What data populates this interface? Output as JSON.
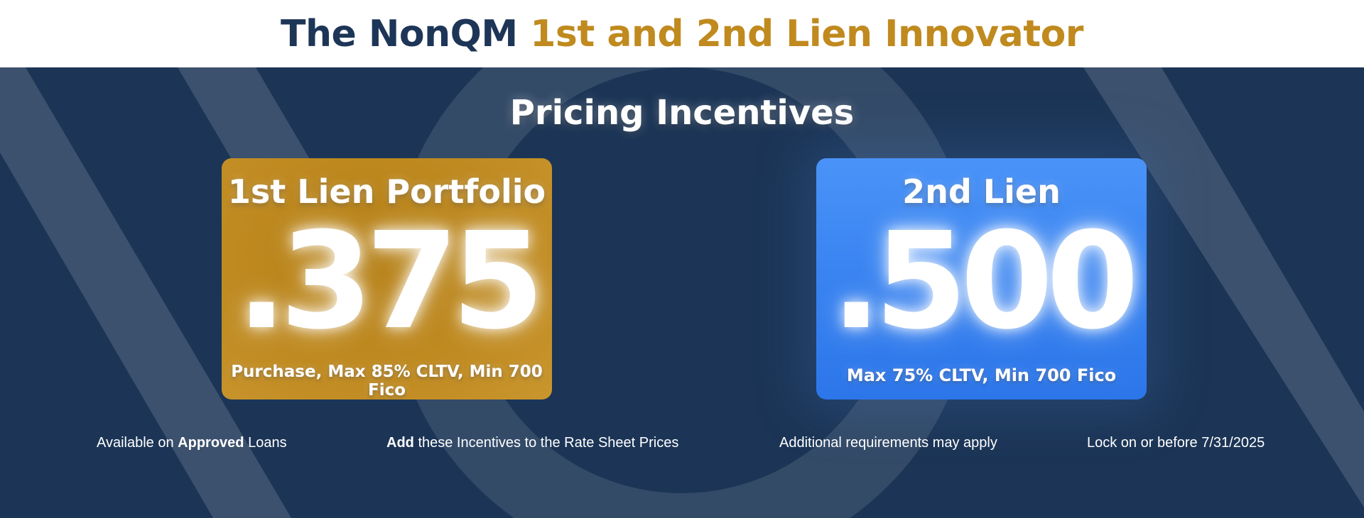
{
  "header": {
    "title_part1": "The NonQM",
    "title_part2": "1st and 2nd Lien Innovator",
    "title_part1_color": "#1d3557",
    "title_part2_color": "#c08a1f"
  },
  "banner": {
    "background_color": "#1c3556",
    "subtitle": "Pricing Incentives"
  },
  "cards": [
    {
      "title": "1st Lien Portfolio",
      "value": ".375",
      "note": "Purchase, Max 85% CLTV, Min 700 Fico",
      "color": "#c08a1f"
    },
    {
      "title": "2nd Lien",
      "value": ".500",
      "note": "Max 75% CLTV, Min 700 Fico",
      "color": "#3b86f2"
    }
  ],
  "footnotes": {
    "approved_prefix": "Available on",
    "approved_bold": "Approved",
    "approved_suffix": "Loans",
    "add_bold": "Add",
    "add_suffix": "these Incentives to the Rate Sheet Prices",
    "requirements": "Additional requirements may apply",
    "lock": "Lock on or before 7/31/2025"
  }
}
